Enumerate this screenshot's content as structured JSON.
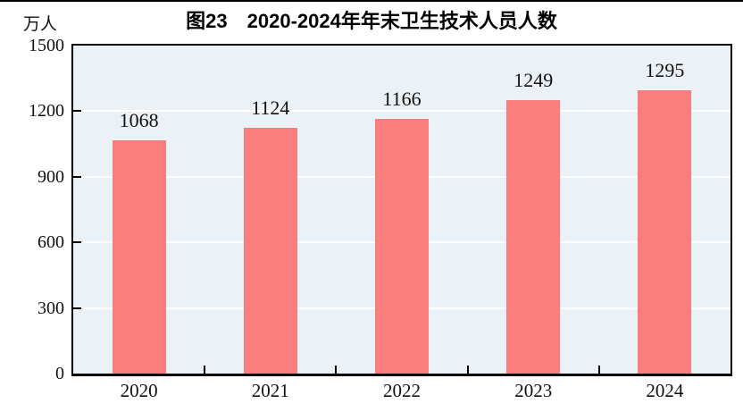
{
  "header": {
    "title": "图23　2020-2024年年末卫生技术人员人数",
    "unit_label": "万人"
  },
  "chart_data": {
    "type": "bar",
    "title": "图23　2020-2024年年末卫生技术人员人数",
    "categories": [
      "2020",
      "2021",
      "2022",
      "2023",
      "2024"
    ],
    "values": [
      1068,
      1124,
      1166,
      1249,
      1295
    ],
    "data_labels": [
      "1068",
      "1124",
      "1166",
      "1249",
      "1295"
    ],
    "xlabel": "",
    "ylabel": "万人",
    "ylim": [
      0,
      1500
    ],
    "ytick_interval": 300,
    "ytick_labels": [
      "0",
      "300",
      "600",
      "900",
      "1200",
      "1500"
    ],
    "grid": "horizontal",
    "legend": "none",
    "colors": {
      "bar": "#FA7E7E",
      "plot_background": "#EBF2F7",
      "gridline": "#FFFFFF",
      "axis": "#000000",
      "text": "#111111",
      "page_background": "#FFFFFF"
    }
  }
}
